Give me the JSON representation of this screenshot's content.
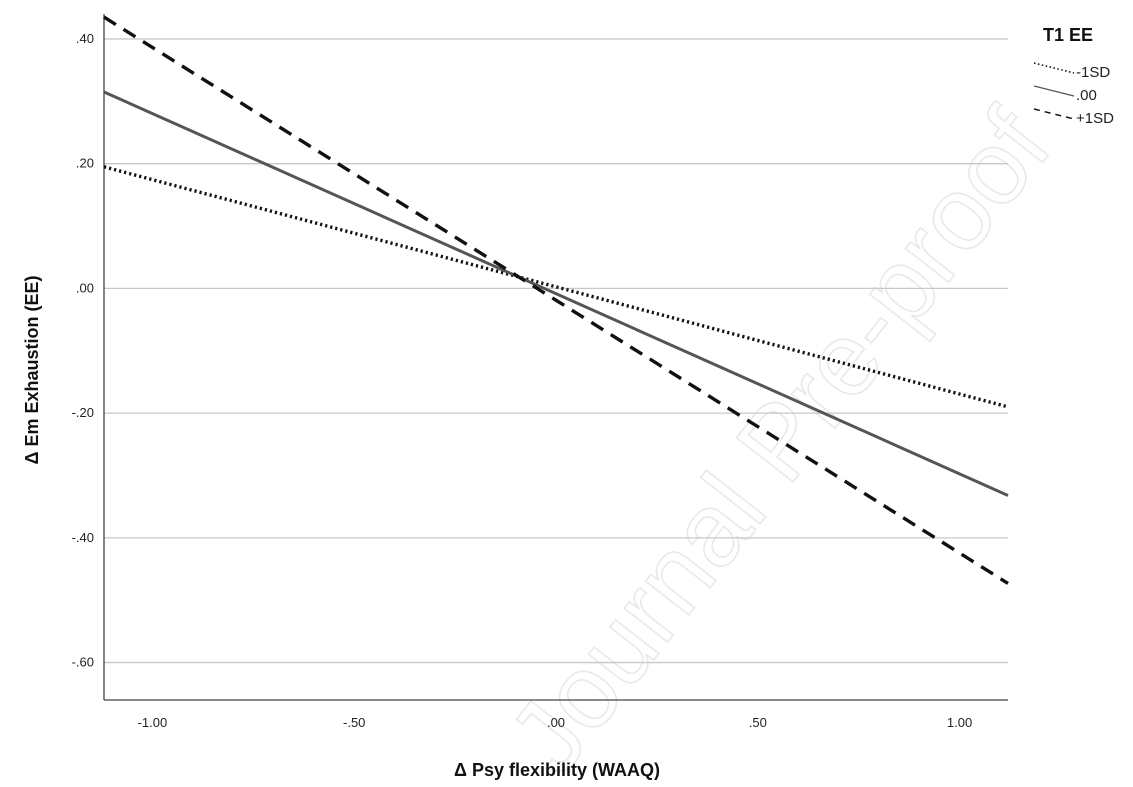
{
  "chart_data": {
    "type": "line",
    "title": "",
    "xlabel": "Δ Psy flexibility (WAAQ)",
    "ylabel": "Δ Em Exhaustion (EE)",
    "xlim": [
      -1.12,
      1.12
    ],
    "ylim": [
      -0.66,
      0.44
    ],
    "x_ticks": [
      -1.0,
      -0.5,
      0.0,
      0.5,
      1.0
    ],
    "x_tick_labels": [
      "-1.00",
      "-.50",
      ".00",
      ".50",
      "1.00"
    ],
    "y_ticks": [
      0.4,
      0.2,
      0.0,
      -0.2,
      -0.4,
      -0.6
    ],
    "y_tick_labels": [
      ".40",
      ".20",
      ".00",
      "-.20",
      "-.40",
      "-.60"
    ],
    "grid": {
      "horizontal": true,
      "vertical": false
    },
    "legend": {
      "title": "T1 EE",
      "position": "top-right"
    },
    "series": [
      {
        "name": "-1SD",
        "style": "dotted",
        "x": [
          -1.12,
          1.12
        ],
        "y": [
          0.195,
          -0.19
        ]
      },
      {
        "name": ".00",
        "style": "solid",
        "x": [
          -1.12,
          1.12
        ],
        "y": [
          0.315,
          -0.332
        ]
      },
      {
        "name": "+1SD",
        "style": "dashed",
        "x": [
          -1.12,
          1.12
        ],
        "y": [
          0.435,
          -0.473
        ]
      }
    ],
    "colors": {
      "line": "#111111",
      "solid_line": "#555555",
      "grid": "#c8c8c8",
      "axis": "#444444"
    }
  },
  "watermark": "Journal Pre-proof"
}
